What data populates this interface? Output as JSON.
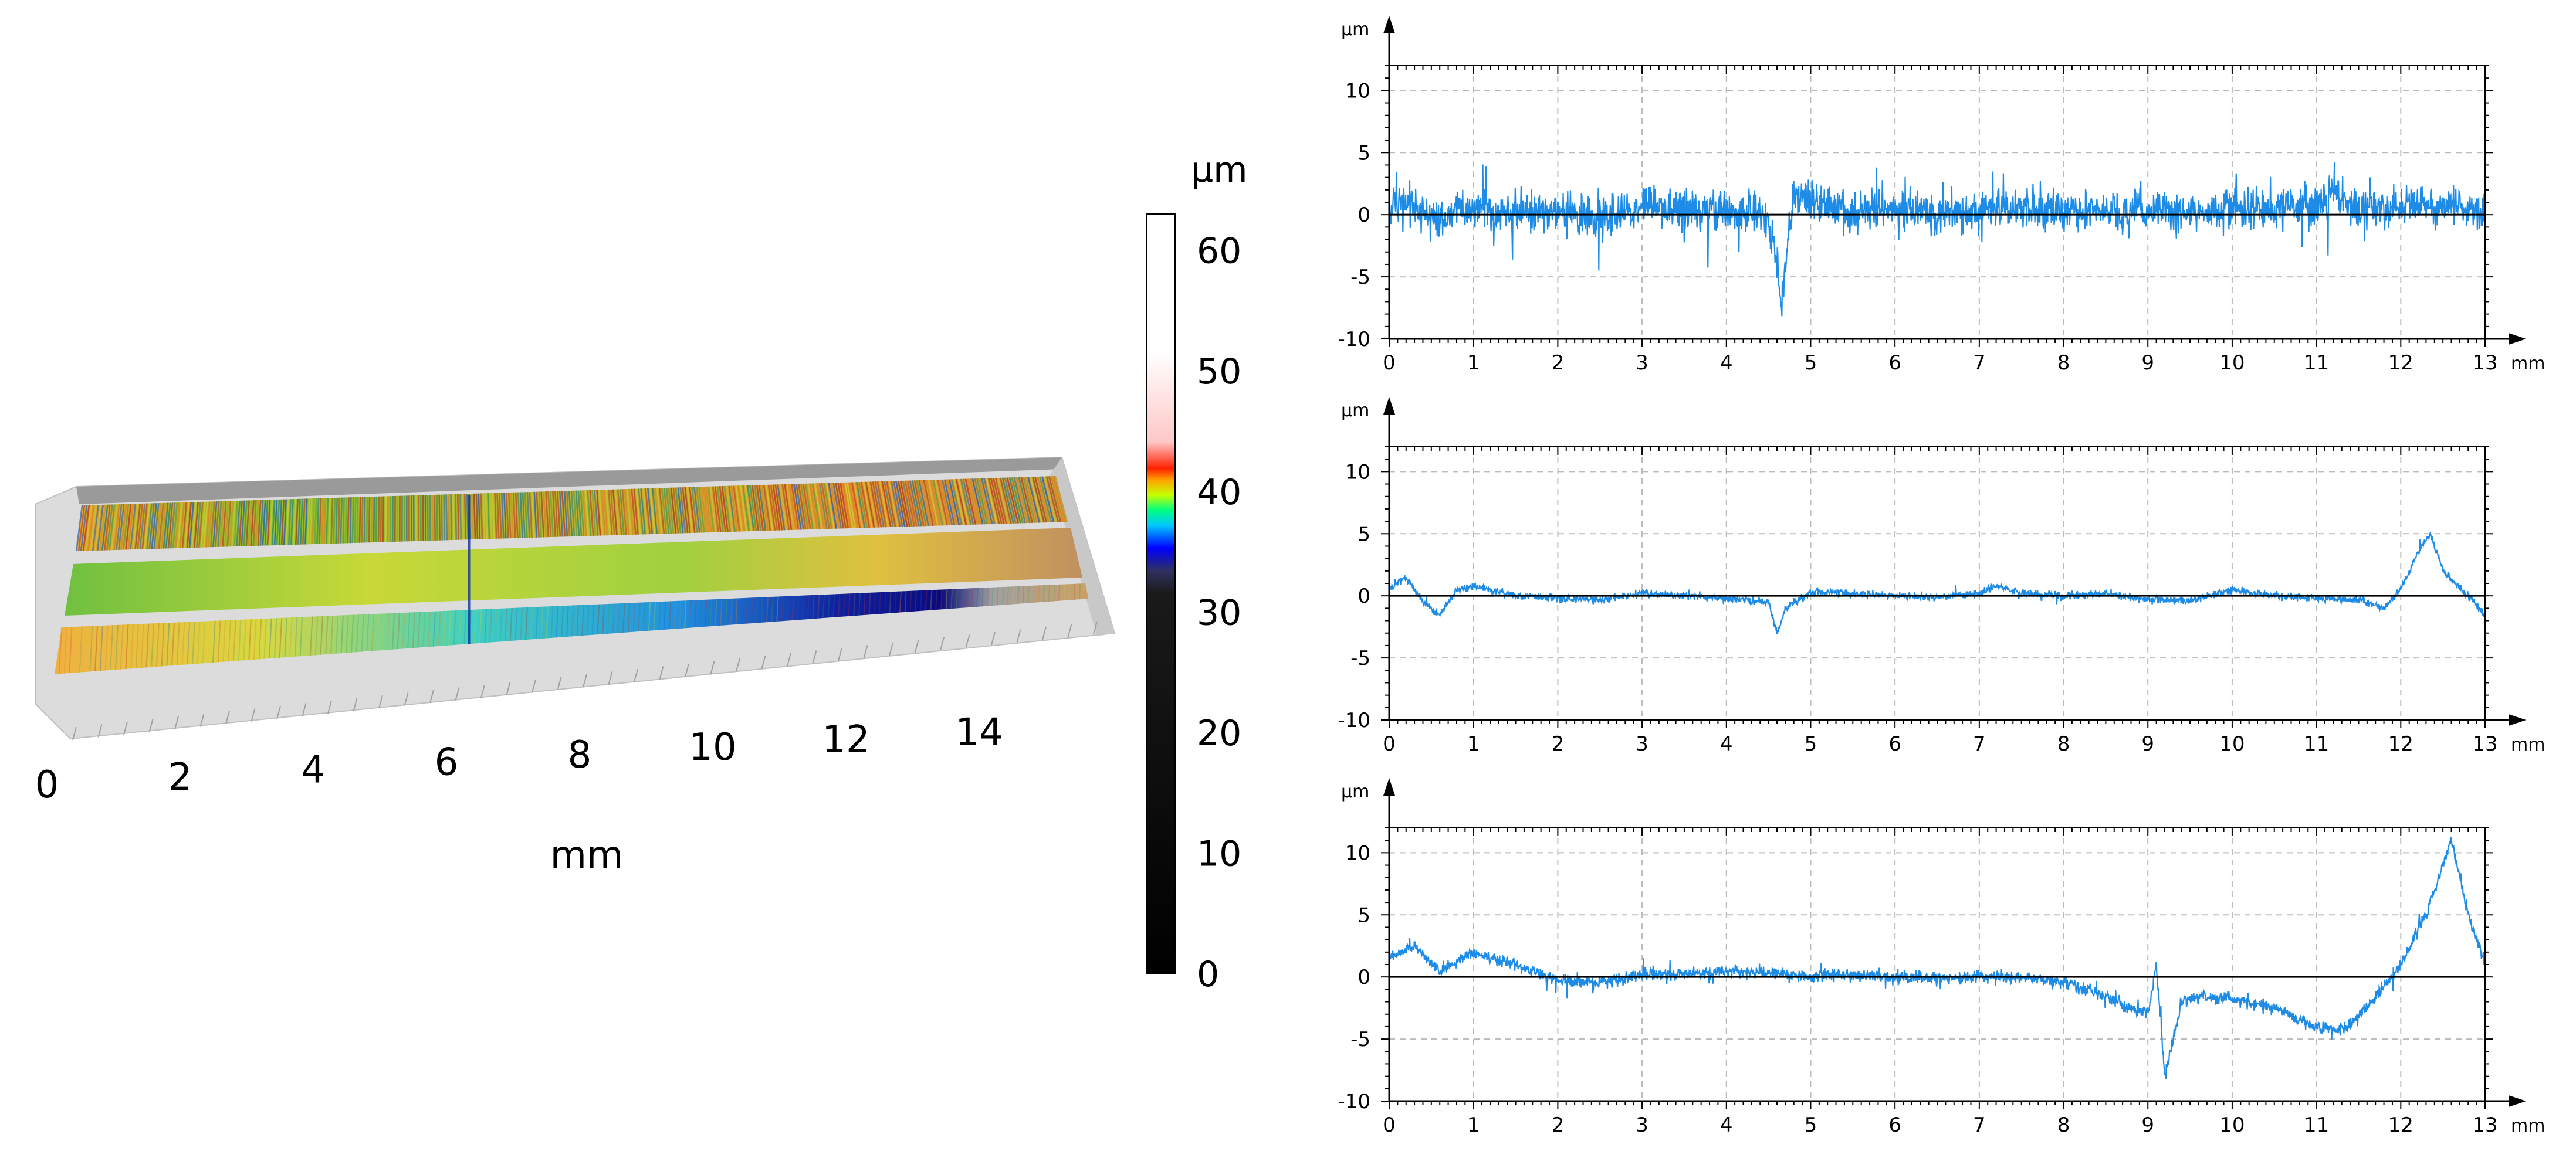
{
  "surface_view": {
    "x_tick_labels": [
      "0",
      "2",
      "4",
      "6",
      "8",
      "10",
      "12",
      "14"
    ],
    "x_unit": "mm",
    "colorbar": {
      "unit": "µm",
      "tick_labels": [
        "0",
        "10",
        "20",
        "30",
        "40",
        "50",
        "60"
      ],
      "range": [
        0,
        63
      ],
      "colors": [
        "#000000",
        "#1a1a1a",
        "#303060",
        "#0000ff",
        "#00c8ff",
        "#00ff80",
        "#c8ff00",
        "#ffa000",
        "#ff2000",
        "#ffc8c8",
        "#ffffff"
      ]
    }
  },
  "chart_data": [
    {
      "type": "line",
      "ylabel": "µm",
      "xlabel": "mm",
      "xlim": [
        0,
        13
      ],
      "ylim": [
        -10,
        12
      ],
      "x_ticks": [
        "0",
        "1",
        "2",
        "3",
        "4",
        "5",
        "6",
        "7",
        "8",
        "9",
        "10",
        "11",
        "12",
        "13"
      ],
      "y_ticks": [
        "10",
        "5",
        "0",
        "-5",
        "-10"
      ],
      "grid": true,
      "color": "#1e8ce6",
      "x": [
        0,
        0.2,
        0.4,
        0.6,
        0.8,
        1.0,
        1.5,
        2.0,
        2.5,
        3.0,
        3.5,
        4.0,
        4.4,
        4.6,
        4.65,
        4.7,
        4.8,
        5.0,
        5.5,
        6.0,
        6.5,
        7.0,
        7.5,
        8.0,
        8.5,
        9.0,
        9.5,
        10.0,
        10.5,
        11.0,
        11.2,
        11.5,
        12.0,
        12.5,
        13.0
      ],
      "y": [
        0.5,
        1,
        0.2,
        -0.8,
        0.3,
        0.5,
        0.3,
        0.2,
        -0.3,
        0.8,
        0.5,
        0.2,
        0.5,
        -3,
        -8,
        -4,
        1.5,
        0.8,
        0.3,
        0.5,
        0.2,
        0.4,
        0.5,
        0.2,
        0.3,
        0.1,
        0.4,
        0.5,
        0.6,
        0.7,
        1.5,
        0.5,
        0.4,
        0.6,
        0.2
      ],
      "noise": 1.6
    },
    {
      "type": "line",
      "ylabel": "µm",
      "xlabel": "mm",
      "xlim": [
        0,
        13
      ],
      "ylim": [
        -10,
        12
      ],
      "x_ticks": [
        "0",
        "1",
        "2",
        "3",
        "4",
        "5",
        "6",
        "7",
        "8",
        "9",
        "10",
        "11",
        "12",
        "13"
      ],
      "y_ticks": [
        "10",
        "5",
        "0",
        "-5",
        "-10"
      ],
      "grid": true,
      "color": "#1e8ce6",
      "x": [
        0,
        0.2,
        0.4,
        0.6,
        0.8,
        1.0,
        1.5,
        2.0,
        2.5,
        3.0,
        3.5,
        4.0,
        4.5,
        4.6,
        4.7,
        5.0,
        5.5,
        6.0,
        6.5,
        7.0,
        7.2,
        7.5,
        8.0,
        8.5,
        9.0,
        9.5,
        10.0,
        10.5,
        11.0,
        11.5,
        11.8,
        12.0,
        12.2,
        12.35,
        12.5,
        12.8,
        13.0
      ],
      "y": [
        0.5,
        1.5,
        -0.5,
        -1.5,
        0.5,
        0.8,
        0,
        -0.2,
        -0.3,
        0.2,
        0,
        -0.2,
        -0.5,
        -3,
        -1,
        0.3,
        0.2,
        0,
        -0.1,
        0.2,
        0.8,
        0.2,
        0,
        0.2,
        -0.3,
        -0.4,
        0.5,
        0,
        -0.2,
        -0.3,
        -1,
        0.5,
        3.5,
        5,
        2,
        0,
        -1.5
      ],
      "noise": 0.3
    },
    {
      "type": "line",
      "ylabel": "µm",
      "xlabel": "mm",
      "xlim": [
        0,
        13
      ],
      "ylim": [
        -10,
        12
      ],
      "x_ticks": [
        "0",
        "1",
        "2",
        "3",
        "4",
        "5",
        "6",
        "7",
        "8",
        "9",
        "10",
        "11",
        "12",
        "13"
      ],
      "y_ticks": [
        "10",
        "5",
        "0",
        "-5",
        "-10"
      ],
      "grid": true,
      "color": "#1e8ce6",
      "x": [
        0,
        0.3,
        0.6,
        1.0,
        1.5,
        2.0,
        2.5,
        3.0,
        3.5,
        4.0,
        4.5,
        5.0,
        5.5,
        6.0,
        6.5,
        7.0,
        7.5,
        8.0,
        8.5,
        8.8,
        9.0,
        9.1,
        9.2,
        9.4,
        9.6,
        10.0,
        10.5,
        11.0,
        11.3,
        11.6,
        12.0,
        12.3,
        12.5,
        12.6,
        12.8,
        13.0
      ],
      "y": [
        1.5,
        2.5,
        0.5,
        2,
        1,
        -0.3,
        -0.5,
        0.2,
        0.2,
        0.5,
        0.3,
        0,
        0.2,
        0,
        -0.1,
        0,
        0,
        -0.4,
        -1.5,
        -2.5,
        -3,
        1,
        -8,
        -2,
        -1.5,
        -1.8,
        -2.5,
        -4,
        -4.3,
        -2.5,
        1,
        5,
        9,
        11,
        5,
        1
      ],
      "noise": 0.5
    }
  ]
}
